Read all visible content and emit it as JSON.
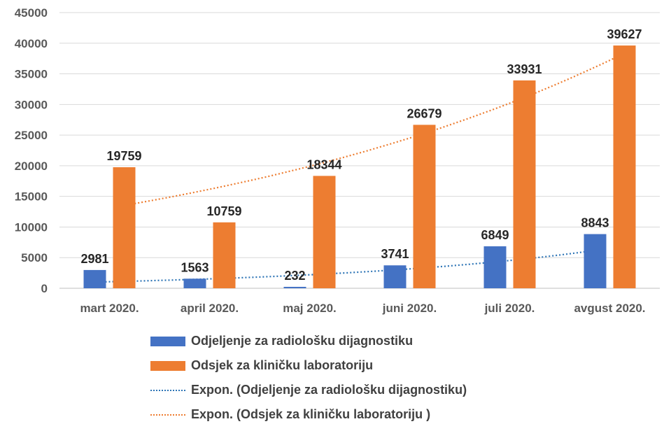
{
  "chart_data": {
    "type": "bar",
    "categories": [
      "mart 2020.",
      "april 2020.",
      "maj 2020.",
      "juni 2020.",
      "juli 2020.",
      "avgust 2020."
    ],
    "series": [
      {
        "name": "Odjeljenje za radiološku dijagnostiku",
        "values": [
          2981,
          1563,
          232,
          3741,
          6849,
          8843
        ],
        "color": "#4472C4"
      },
      {
        "name": "Odsjek za kliničku laboratoriju",
        "values": [
          19759,
          10759,
          18344,
          26679,
          33931,
          39627
        ],
        "color": "#ED7D31"
      }
    ],
    "trendlines": [
      {
        "name": "Expon. (Odjeljenje za radiološku dijagnostiku)",
        "type": "exponential",
        "series": 0,
        "color": "#2E75B6"
      },
      {
        "name": "Expon. (Odsjek za kliničku laboratoriju )",
        "type": "exponential",
        "series": 1,
        "color": "#ED7D31"
      }
    ],
    "yticks": [
      "0",
      "5000",
      "10000",
      "15000",
      "20000",
      "25000",
      "30000",
      "35000",
      "40000",
      "45000"
    ],
    "ylim": [
      0,
      45000
    ],
    "grid": true,
    "data_labels": true,
    "legend_position": "bottom"
  }
}
